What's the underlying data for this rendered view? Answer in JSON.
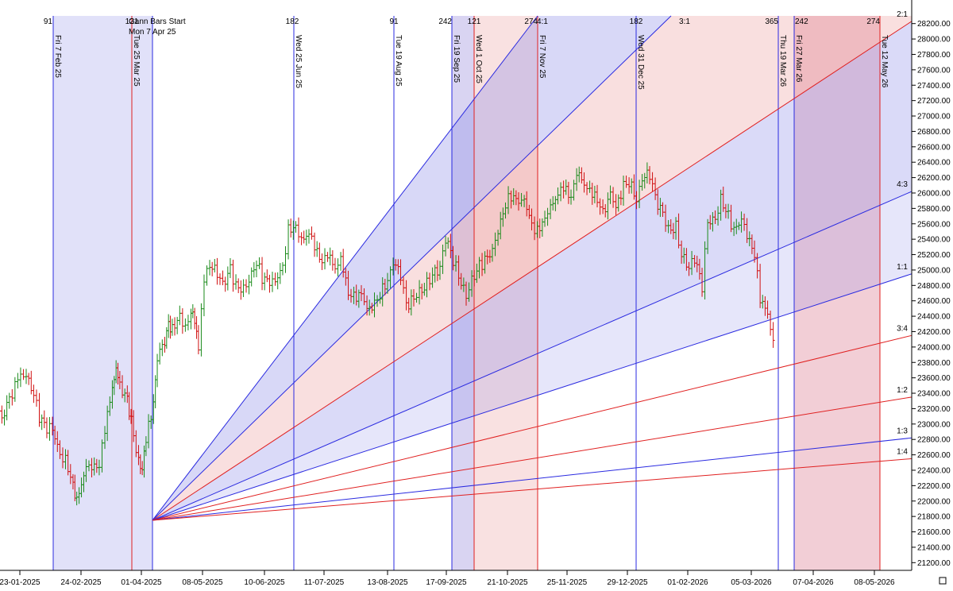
{
  "chart_data": {
    "type": "ohlc-gann",
    "y_ticks": [
      "28200.00",
      "28000.00",
      "27800.00",
      "27600.00",
      "27400.00",
      "27200.00",
      "27000.00",
      "26800.00",
      "26600.00",
      "26400.00",
      "26200.00",
      "26000.00",
      "25800.00",
      "25600.00",
      "25400.00",
      "25200.00",
      "25000.00",
      "24800.00",
      "24600.00",
      "24400.00",
      "24200.00",
      "24000.00",
      "23800.00",
      "23600.00",
      "23400.00",
      "23200.00",
      "23000.00",
      "22800.00",
      "22600.00",
      "22400.00",
      "22200.00",
      "22000.00",
      "21800.00",
      "21600.00",
      "21400.00",
      "21200.00"
    ],
    "ylim": [
      21100,
      28300
    ],
    "x_ticks": [
      "23-01-2025",
      "24-02-2025",
      "01-04-2025",
      "08-05-2025",
      "10-06-2025",
      "11-07-2025",
      "13-08-2025",
      "17-09-2025",
      "21-10-2025",
      "25-11-2025",
      "29-12-2025",
      "01-02-2026",
      "05-03-2026",
      "07-04-2026",
      "08-05-2026"
    ],
    "gann_start_label": [
      "Gann Bars Start",
      "Mon 7 Apr 25"
    ],
    "gann_origin": {
      "date": "Mon 7 Apr 25",
      "price": 21750
    },
    "fan_angles": [
      {
        "ratio": "2:1",
        "color": "#e02020",
        "end_price": 28230
      },
      {
        "ratio": "4:3",
        "color": "#2a2ae0",
        "end_price": 26020
      },
      {
        "ratio": "1:1",
        "color": "#2a2ae0",
        "end_price": 24950
      },
      {
        "ratio": "3:4",
        "color": "#e02020",
        "end_price": 24150
      },
      {
        "ratio": "1:2",
        "color": "#e02020",
        "end_price": 23350
      },
      {
        "ratio": "1:3",
        "color": "#2a2ae0",
        "end_price": 22820
      },
      {
        "ratio": "1:4",
        "color": "#e02020",
        "end_price": 22550
      }
    ],
    "steep_angles": [
      {
        "ratio": "4:1",
        "color": "#2a2ae0"
      },
      {
        "ratio": "3:1",
        "color": "#2a2ae0"
      }
    ],
    "vertical_lines": [
      {
        "label": "Fri 7 Feb 25",
        "color": "#2a2ae0",
        "count": "91"
      },
      {
        "label": "Tue 25 Mar 25",
        "color": "#e02020",
        "count": "121"
      },
      {
        "label": "",
        "color": "#2a2ae0",
        "count": ""
      },
      {
        "label": "Wed 25 Jun 25",
        "color": "#2a2ae0",
        "count": "182"
      },
      {
        "label": "Tue 19 Aug 25",
        "color": "#2a2ae0",
        "count": "91"
      },
      {
        "label": "Fri 19 Sep 25",
        "color": "#2a2ae0",
        "count": "242"
      },
      {
        "label": "Wed 1 Oct 25",
        "color": "#e02020",
        "count": "121"
      },
      {
        "label": "Fri 7 Nov 25",
        "color": "#e02020",
        "count": "274"
      },
      {
        "label": "Wed 31 Dec 25",
        "color": "#2a2ae0",
        "count": "182"
      },
      {
        "label": "Thu 19 Mar 26",
        "color": "#2a2ae0",
        "count": "365"
      },
      {
        "label": "Fri 27 Mar 26",
        "color": "#2a2ae0",
        "count": "242"
      },
      {
        "label": "Tue 12 May 26",
        "color": "#e02020",
        "count": "274"
      }
    ],
    "price_path": [
      [
        "2025-01-20",
        23200
      ],
      [
        "2025-01-24",
        23100
      ],
      [
        "2025-01-28",
        23300
      ],
      [
        "2025-01-31",
        23500
      ],
      [
        "2025-02-03",
        23700
      ],
      [
        "2025-02-06",
        23650
      ],
      [
        "2025-02-10",
        23400
      ],
      [
        "2025-02-13",
        23100
      ],
      [
        "2025-02-17",
        22950
      ],
      [
        "2025-02-20",
        22900
      ],
      [
        "2025-02-24",
        22600
      ],
      [
        "2025-02-27",
        22500
      ],
      [
        "2025-03-03",
        22200
      ],
      [
        "2025-03-05",
        22050
      ],
      [
        "2025-03-10",
        22400
      ],
      [
        "2025-03-13",
        22500
      ],
      [
        "2025-03-17",
        22450
      ],
      [
        "2025-03-20",
        22900
      ],
      [
        "2025-03-24",
        23500
      ],
      [
        "2025-03-26",
        23650
      ],
      [
        "2025-03-28",
        23500
      ],
      [
        "2025-04-01",
        23300
      ],
      [
        "2025-04-03",
        23050
      ],
      [
        "2025-04-07",
        22500
      ],
      [
        "2025-04-09",
        22450
      ],
      [
        "2025-04-11",
        22800
      ],
      [
        "2025-04-15",
        23300
      ],
      [
        "2025-04-17",
        23800
      ],
      [
        "2025-04-21",
        24100
      ],
      [
        "2025-04-23",
        24300
      ],
      [
        "2025-04-25",
        24200
      ],
      [
        "2025-04-29",
        24400
      ],
      [
        "2025-05-02",
        24300
      ],
      [
        "2025-05-05",
        24450
      ],
      [
        "2025-05-07",
        24400
      ],
      [
        "2025-05-09",
        24000
      ],
      [
        "2025-05-12",
        24850
      ],
      [
        "2025-05-15",
        25050
      ],
      [
        "2025-05-19",
        24950
      ],
      [
        "2025-05-22",
        24800
      ],
      [
        "2025-05-26",
        25000
      ],
      [
        "2025-05-29",
        24800
      ],
      [
        "2025-06-02",
        24750
      ],
      [
        "2025-06-05",
        24900
      ],
      [
        "2025-06-09",
        25100
      ],
      [
        "2025-06-12",
        24900
      ],
      [
        "2025-06-16",
        24850
      ],
      [
        "2025-06-19",
        24800
      ],
      [
        "2025-06-23",
        25050
      ],
      [
        "2025-06-26",
        25500
      ],
      [
        "2025-06-30",
        25550
      ],
      [
        "2025-07-03",
        25450
      ],
      [
        "2025-07-07",
        25450
      ],
      [
        "2025-07-10",
        25350
      ],
      [
        "2025-07-14",
        25100
      ],
      [
        "2025-07-17",
        25150
      ],
      [
        "2025-07-21",
        25050
      ],
      [
        "2025-07-24",
        25100
      ],
      [
        "2025-07-28",
        24700
      ],
      [
        "2025-07-31",
        24700
      ],
      [
        "2025-08-04",
        24650
      ],
      [
        "2025-08-07",
        24550
      ],
      [
        "2025-08-11",
        24550
      ],
      [
        "2025-08-14",
        24650
      ],
      [
        "2025-08-18",
        24900
      ],
      [
        "2025-08-21",
        25050
      ],
      [
        "2025-08-25",
        24950
      ],
      [
        "2025-08-28",
        24550
      ],
      [
        "2025-09-01",
        24600
      ],
      [
        "2025-09-04",
        24750
      ],
      [
        "2025-09-08",
        24800
      ],
      [
        "2025-09-11",
        24950
      ],
      [
        "2025-09-15",
        25050
      ],
      [
        "2025-09-18",
        25400
      ],
      [
        "2025-09-22",
        25150
      ],
      [
        "2025-09-25",
        24900
      ],
      [
        "2025-09-29",
        24650
      ],
      [
        "2025-10-02",
        24850
      ],
      [
        "2025-10-06",
        25050
      ],
      [
        "2025-10-09",
        25150
      ],
      [
        "2025-10-13",
        25250
      ],
      [
        "2025-10-16",
        25550
      ],
      [
        "2025-10-20",
        25850
      ],
      [
        "2025-10-23",
        25950
      ],
      [
        "2025-10-27",
        25900
      ],
      [
        "2025-10-30",
        25850
      ],
      [
        "2025-11-03",
        25600
      ],
      [
        "2025-11-06",
        25500
      ],
      [
        "2025-11-10",
        25650
      ],
      [
        "2025-11-13",
        25900
      ],
      [
        "2025-11-17",
        25950
      ],
      [
        "2025-11-20",
        26100
      ],
      [
        "2025-11-24",
        25950
      ],
      [
        "2025-11-27",
        26200
      ],
      [
        "2025-12-01",
        26150
      ],
      [
        "2025-12-04",
        26000
      ],
      [
        "2025-12-08",
        25900
      ],
      [
        "2025-12-11",
        25800
      ],
      [
        "2025-12-15",
        25950
      ],
      [
        "2025-12-18",
        25850
      ],
      [
        "2025-12-22",
        26100
      ],
      [
        "2025-12-25",
        26100
      ],
      [
        "2025-12-29",
        25950
      ],
      [
        "2026-01-01",
        26150
      ],
      [
        "2026-01-05",
        26250
      ],
      [
        "2026-01-08",
        25950
      ],
      [
        "2026-01-12",
        25700
      ],
      [
        "2026-01-15",
        25550
      ],
      [
        "2026-01-19",
        25550
      ],
      [
        "2026-01-22",
        25200
      ],
      [
        "2026-01-26",
        25050
      ],
      [
        "2026-01-29",
        25150
      ],
      [
        "2026-02-02",
        24800
      ],
      [
        "2026-02-05",
        25600
      ],
      [
        "2026-02-09",
        25650
      ],
      [
        "2026-02-12",
        25900
      ],
      [
        "2026-02-16",
        25700
      ],
      [
        "2026-02-19",
        25550
      ],
      [
        "2026-02-23",
        25650
      ],
      [
        "2026-02-26",
        25500
      ],
      [
        "2026-03-02",
        25200
      ],
      [
        "2026-03-05",
        24600
      ],
      [
        "2026-03-09",
        24450
      ],
      [
        "2026-03-12",
        24000
      ]
    ]
  }
}
